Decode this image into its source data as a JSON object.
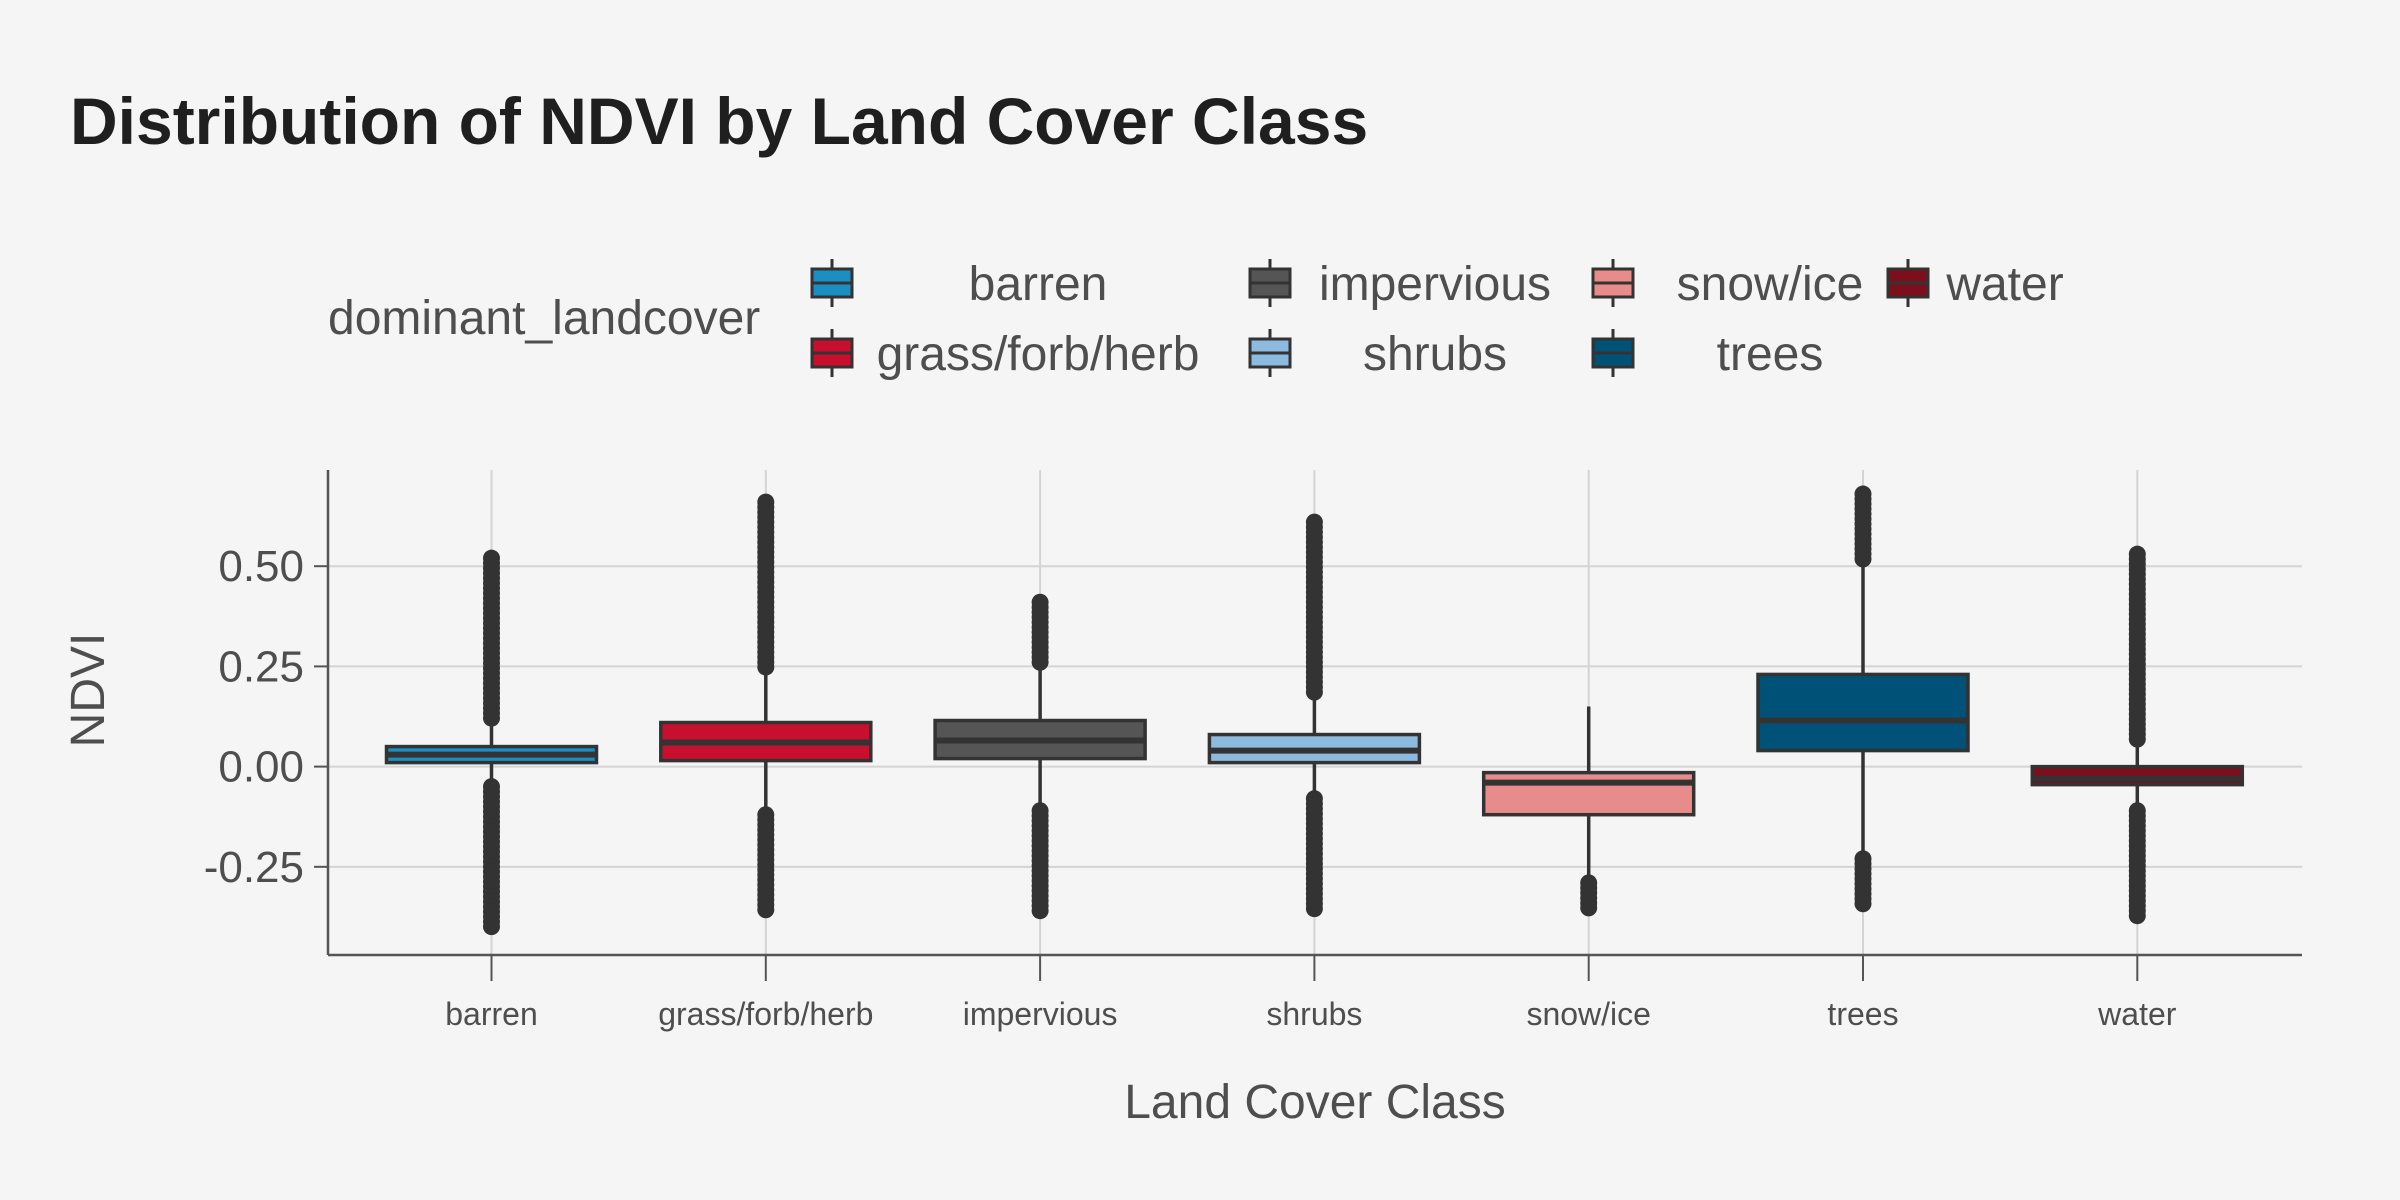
{
  "chart_data": {
    "type": "boxplot",
    "title": "Distribution of NDVI by Land Cover Class",
    "xlabel": "Land Cover Class",
    "ylabel": "NDVI",
    "ylim": [
      -0.47,
      0.74
    ],
    "yticks": [
      0.5,
      0.25,
      0.0,
      -0.25
    ],
    "ytick_labels": [
      "0.50",
      "0.25",
      "0.00",
      "-0.25"
    ],
    "grid": true,
    "legend": {
      "title": "dominant_landcover",
      "position": "top",
      "rows": [
        [
          "barren",
          "impervious",
          "snow/ice",
          "water"
        ],
        [
          "grass/forb/herb",
          "shrubs",
          "trees"
        ]
      ]
    },
    "categories": [
      "barren",
      "grass/forb/herb",
      "impervious",
      "shrubs",
      "snow/ice",
      "trees",
      "water"
    ],
    "boxes": [
      {
        "category": "barren",
        "color": "#1b8fc2",
        "q1": 0.01,
        "median": 0.03,
        "q3": 0.05,
        "whisker_low": -0.04,
        "whisker_high": 0.1,
        "outliers_high": [
          0.11,
          0.52
        ],
        "outliers_low": [
          -0.05,
          -0.41
        ]
      },
      {
        "category": "grass/forb/herb",
        "color": "#c8102e",
        "q1": 0.015,
        "median": 0.06,
        "q3": 0.11,
        "whisker_low": -0.12,
        "whisker_high": 0.24,
        "outliers_high": [
          0.24,
          0.66
        ],
        "outliers_low": [
          -0.12,
          -0.36
        ]
      },
      {
        "category": "impervious",
        "color": "#555555",
        "q1": 0.02,
        "median": 0.065,
        "q3": 0.115,
        "whisker_low": -0.11,
        "whisker_high": 0.25,
        "outliers_high": [
          0.25,
          0.41
        ],
        "outliers_low": [
          -0.11,
          -0.36
        ]
      },
      {
        "category": "shrubs",
        "color": "#8dbbe0",
        "q1": 0.01,
        "median": 0.04,
        "q3": 0.08,
        "whisker_low": -0.08,
        "whisker_high": 0.18,
        "outliers_high": [
          0.18,
          0.61
        ],
        "outliers_low": [
          -0.08,
          -0.36
        ]
      },
      {
        "category": "snow/ice",
        "color": "#e88b8b",
        "q1": -0.12,
        "median": -0.04,
        "q3": -0.015,
        "whisker_low": -0.28,
        "whisker_high": 0.15,
        "outliers_high": [],
        "outliers_low": [
          -0.29,
          -0.36
        ]
      },
      {
        "category": "trees",
        "color": "#005177",
        "q1": 0.04,
        "median": 0.115,
        "q3": 0.23,
        "whisker_low": -0.23,
        "whisker_high": 0.51,
        "outliers_high": [
          0.51,
          0.68
        ],
        "outliers_low": [
          -0.23,
          -0.35
        ]
      },
      {
        "category": "water",
        "color": "#7d0e1b",
        "q1": -0.045,
        "median": -0.03,
        "q3": 0.0,
        "whisker_low": -0.11,
        "whisker_high": 0.05,
        "outliers_high": [
          0.06,
          0.53
        ],
        "outliers_low": [
          -0.11,
          -0.38
        ]
      }
    ]
  }
}
